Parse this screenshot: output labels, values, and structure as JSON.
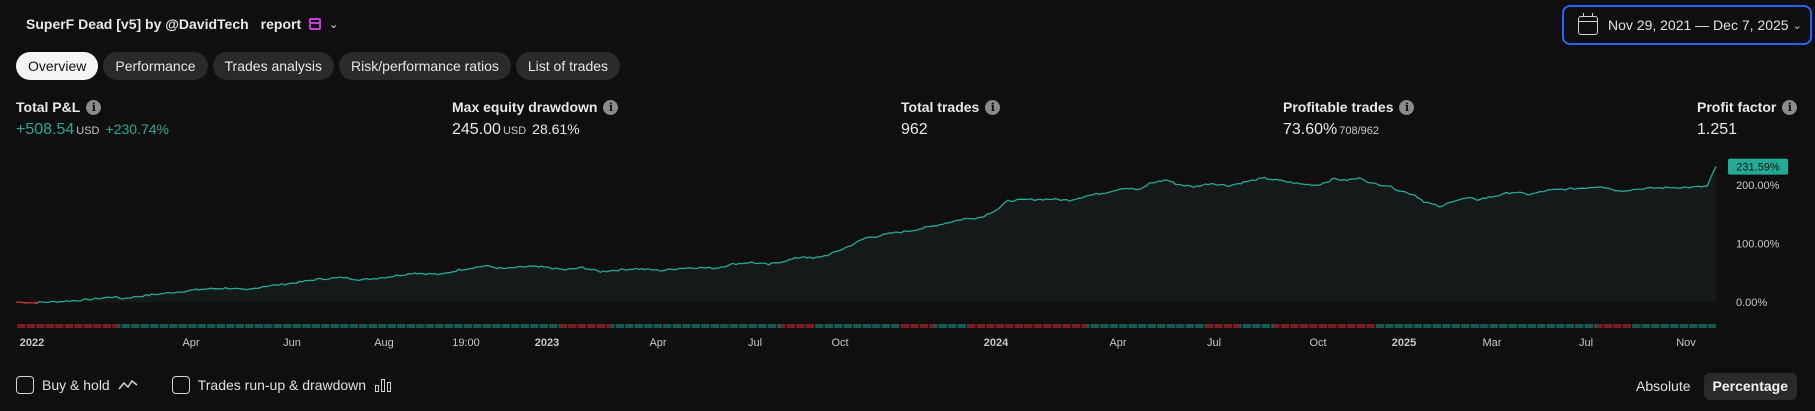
{
  "header": {
    "prefix_glyph": "",
    "title": "SuperF Dead [v5] by @DavidTech",
    "mid_glyph": "",
    "suffix": "report",
    "chevron": "⌄"
  },
  "date_range": {
    "label": "Nov 29, 2021 — Dec 7, 2025",
    "chevron": "⌄"
  },
  "tabs": [
    {
      "label": "Overview",
      "active": true
    },
    {
      "label": "Performance",
      "active": false
    },
    {
      "label": "Trades analysis",
      "active": false
    },
    {
      "label": "Risk/performance ratios",
      "active": false
    },
    {
      "label": "List of trades",
      "active": false
    }
  ],
  "metrics": {
    "total_pnl": {
      "label": "Total P&L",
      "value": "+508.54",
      "unit": "USD",
      "pct": "+230.74%"
    },
    "max_dd": {
      "label": "Max equity drawdown",
      "value": "245.00",
      "unit": "USD",
      "pct": "28.61%"
    },
    "total_trades": {
      "label": "Total trades",
      "value": "962"
    },
    "profitable": {
      "label": "Profitable trades",
      "value": "73.60%",
      "sub": "708/962"
    },
    "profit_factor": {
      "label": "Profit factor",
      "value": "1.251"
    }
  },
  "footer": {
    "buy_hold_label": "Buy & hold",
    "runup_label": "Trades run-up & drawdown",
    "absolute_label": "Absolute",
    "percentage_label": "Percentage"
  },
  "colors": {
    "positive": "#22ab94",
    "negative": "#c2252a",
    "accent": "#2962ff",
    "badge": "#c93ad8"
  },
  "chart_data": {
    "type": "area",
    "ylabel": "",
    "y_ticks": [
      "0.00%",
      "100.00%",
      "200.00%"
    ],
    "ylim": [
      -5,
      260
    ],
    "last_value_label": "231.59%",
    "x_tick_labels": [
      {
        "label": "2022",
        "bold": true
      },
      {
        "label": "Apr",
        "bold": false
      },
      {
        "label": "Jun",
        "bold": false
      },
      {
        "label": "Aug",
        "bold": false
      },
      {
        "label": "19:00",
        "bold": false
      },
      {
        "label": "2023",
        "bold": true
      },
      {
        "label": "Apr",
        "bold": false
      },
      {
        "label": "Jul",
        "bold": false
      },
      {
        "label": "Oct",
        "bold": false
      },
      {
        "label": "2024",
        "bold": true
      },
      {
        "label": "Apr",
        "bold": false
      },
      {
        "label": "Jul",
        "bold": false
      },
      {
        "label": "Oct",
        "bold": false
      },
      {
        "label": "2025",
        "bold": true
      },
      {
        "label": "Mar",
        "bold": false
      },
      {
        "label": "Jul",
        "bold": false
      },
      {
        "label": "Nov",
        "bold": false
      }
    ],
    "series": [
      {
        "values": [
          [
            0,
            0
          ],
          [
            2,
            -1
          ],
          [
            5,
            1
          ],
          [
            8,
            4
          ],
          [
            11,
            9
          ],
          [
            12,
            6
          ],
          [
            15,
            12
          ],
          [
            18,
            17
          ],
          [
            21,
            22
          ],
          [
            24,
            24
          ],
          [
            26,
            20
          ],
          [
            28,
            27
          ],
          [
            30,
            30
          ],
          [
            32,
            34
          ],
          [
            34,
            39
          ],
          [
            37,
            42
          ],
          [
            39,
            38
          ],
          [
            42,
            43
          ],
          [
            45,
            50
          ],
          [
            48,
            47
          ],
          [
            50,
            55
          ],
          [
            53,
            62
          ],
          [
            55,
            57
          ],
          [
            58,
            61
          ],
          [
            60,
            59
          ],
          [
            62,
            55
          ],
          [
            64,
            59
          ],
          [
            66,
            52
          ],
          [
            68,
            55
          ],
          [
            70,
            57
          ],
          [
            73,
            54
          ],
          [
            75,
            58
          ],
          [
            77,
            59
          ],
          [
            79,
            58
          ],
          [
            81,
            65
          ],
          [
            83,
            68
          ],
          [
            85,
            64
          ],
          [
            87,
            71
          ],
          [
            89,
            78
          ],
          [
            90,
            74
          ],
          [
            92,
            82
          ],
          [
            94,
            95
          ],
          [
            96,
            110
          ],
          [
            97,
            112
          ],
          [
            99,
            118
          ],
          [
            101,
            122
          ],
          [
            103,
            128
          ],
          [
            105,
            135
          ],
          [
            107,
            142
          ],
          [
            109,
            145
          ],
          [
            111,
            160
          ],
          [
            112,
            173
          ],
          [
            114,
            175
          ],
          [
            117,
            176
          ],
          [
            119,
            174
          ],
          [
            121,
            182
          ],
          [
            123,
            187
          ],
          [
            125,
            195
          ],
          [
            127,
            192
          ],
          [
            128,
            203
          ],
          [
            130,
            209
          ],
          [
            131,
            202
          ],
          [
            133,
            197
          ],
          [
            135,
            203
          ],
          [
            137,
            199
          ],
          [
            139,
            206
          ],
          [
            141,
            212
          ],
          [
            143,
            207
          ],
          [
            145,
            202
          ],
          [
            147,
            200
          ],
          [
            149,
            211
          ],
          [
            150,
            208
          ],
          [
            152,
            212
          ],
          [
            153,
            203
          ],
          [
            155,
            199
          ],
          [
            156,
            192
          ],
          [
            158,
            183
          ],
          [
            159,
            172
          ],
          [
            161,
            162
          ],
          [
            162,
            172
          ],
          [
            164,
            178
          ],
          [
            165,
            175
          ],
          [
            167,
            181
          ],
          [
            169,
            188
          ],
          [
            171,
            184
          ],
          [
            173,
            191
          ],
          [
            175,
            193
          ],
          [
            177,
            195
          ],
          [
            179,
            198
          ],
          [
            181,
            190
          ],
          [
            183,
            193
          ],
          [
            185,
            195
          ],
          [
            187,
            196
          ],
          [
            189,
            196
          ],
          [
            191,
            198
          ],
          [
            192,
            231.59
          ]
        ]
      }
    ],
    "trade_bars": "alternating green (wins) and red (losses) markers along the bottom strip"
  }
}
